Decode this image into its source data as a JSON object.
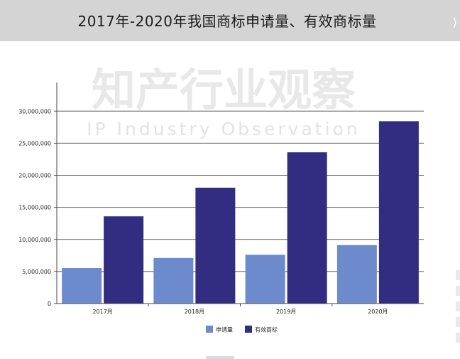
{
  "title": "2017年-2020年我国商标申请量、有效商标量",
  "nav_icon": "chevron-right-icon",
  "watermark": {
    "chinese": "知产行业观察",
    "english": "IP Industry Observation"
  },
  "chart_data": {
    "type": "bar",
    "categories": [
      "2017月",
      "2018月",
      "2019月",
      "2020月"
    ],
    "series": [
      {
        "name": "申请量",
        "values": [
          5540000,
          7110000,
          7600000,
          9110000
        ],
        "color": "#6d8bcc"
      },
      {
        "name": "有效商标",
        "values": [
          13600000,
          18060000,
          23580000,
          28430000
        ],
        "color": "#332d82"
      }
    ],
    "yticks": [
      "0",
      "5,000,000",
      "10,000,000",
      "15,000,000",
      "20,000,000",
      "25,000,000",
      "30,000,000"
    ],
    "ylim": [
      0,
      33800000
    ],
    "grid": true,
    "legend": "bottom-center"
  }
}
